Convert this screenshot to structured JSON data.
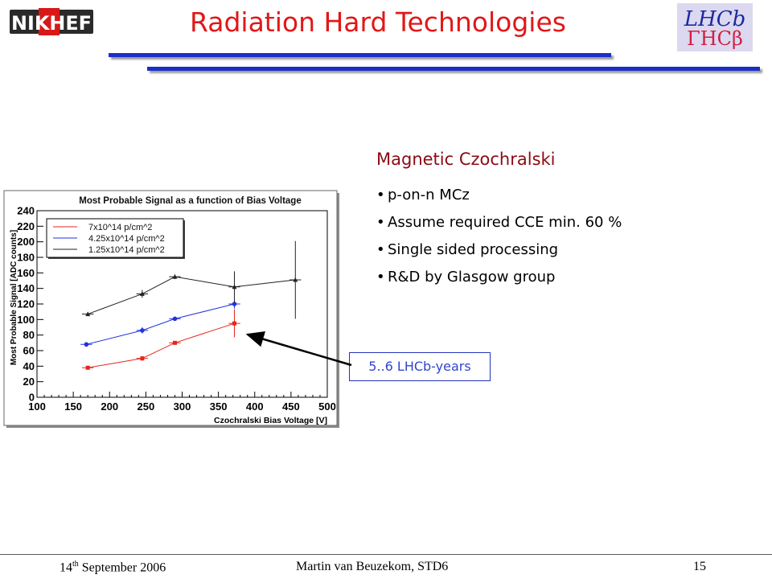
{
  "header": {
    "title": "Radiation Hard Technologies",
    "logo_left_text": "NIKHEF",
    "logo_right_text_top": "LHCb",
    "logo_right_text_bottom": "ΓHCβ"
  },
  "content": {
    "subtitle": "Magnetic Czochralski",
    "bullets": [
      "p-on-n MCz",
      "Assume required CCE min. 60 %",
      "Single sided processing",
      "R&D by Glasgow group"
    ],
    "callout": "5..6 LHCb-years"
  },
  "footer": {
    "date_day": "14",
    "date_sup": "th",
    "date_rest": " September 2006",
    "author": "Martin van Beuzekom, STD6",
    "page": "15"
  },
  "chart_data": {
    "type": "scatter",
    "title": "Most Probable Signal as a function of Bias Voltage",
    "xlabel": "Czochralski Bias Voltage [V]",
    "ylabel": "Most Probable Signal [ADC counts]",
    "xlim": [
      100,
      500
    ],
    "ylim": [
      0,
      240
    ],
    "xticks": [
      100,
      150,
      200,
      250,
      300,
      350,
      400,
      450,
      500
    ],
    "yticks": [
      0,
      20,
      40,
      60,
      80,
      100,
      120,
      140,
      160,
      180,
      200,
      220,
      240
    ],
    "legend": "top-left",
    "series": [
      {
        "name": "7x10^14 p/cm^2",
        "color": "#e8241c",
        "marker": "square",
        "x": [
          170,
          245,
          290,
          372
        ],
        "y": [
          38,
          50,
          70,
          95
        ],
        "yerr": [
          2,
          3,
          2,
          18
        ],
        "xerr": [
          8,
          8,
          8,
          8
        ]
      },
      {
        "name": "4.25x10^14 p/cm^2",
        "color": "#2233dd",
        "marker": "circle",
        "x": [
          168,
          245,
          290,
          372
        ],
        "y": [
          68,
          86,
          101,
          120
        ],
        "yerr": [
          3,
          4,
          2,
          6
        ],
        "xerr": [
          8,
          8,
          8,
          8
        ]
      },
      {
        "name": "1.25x10^14 p/cm^2",
        "color": "#222222",
        "marker": "triangle",
        "x": [
          170,
          245,
          290,
          372,
          456
        ],
        "y": [
          107,
          133,
          155,
          142,
          151
        ],
        "yerr": [
          2,
          5,
          3,
          20,
          50
        ],
        "xerr": [
          8,
          8,
          8,
          8,
          8
        ]
      }
    ]
  }
}
